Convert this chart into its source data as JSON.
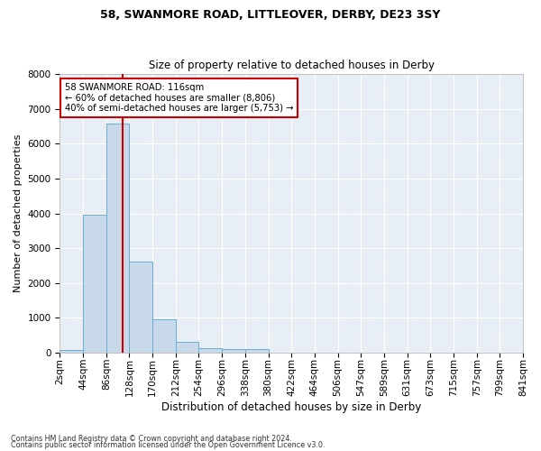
{
  "title1": "58, SWANMORE ROAD, LITTLEOVER, DERBY, DE23 3SY",
  "title2": "Size of property relative to detached houses in Derby",
  "xlabel": "Distribution of detached houses by size in Derby",
  "ylabel": "Number of detached properties",
  "bar_color": "#c8daea",
  "bar_edge_color": "#6aadd5",
  "background_color": "#e8eef5",
  "grid_color": "#ffffff",
  "bin_edges": [
    2,
    44,
    86,
    128,
    170,
    212,
    254,
    296,
    338,
    380,
    422,
    464,
    506,
    547,
    589,
    631,
    673,
    715,
    757,
    799,
    841
  ],
  "bin_labels": [
    "2sqm",
    "44sqm",
    "86sqm",
    "128sqm",
    "170sqm",
    "212sqm",
    "254sqm",
    "296sqm",
    "338sqm",
    "380sqm",
    "422sqm",
    "464sqm",
    "506sqm",
    "547sqm",
    "589sqm",
    "631sqm",
    "673sqm",
    "715sqm",
    "757sqm",
    "799sqm",
    "841sqm"
  ],
  "values": [
    75,
    3950,
    6580,
    2620,
    960,
    305,
    115,
    100,
    80,
    0,
    0,
    0,
    0,
    0,
    0,
    0,
    0,
    0,
    0,
    0
  ],
  "ylim": [
    0,
    8000
  ],
  "yticks": [
    0,
    1000,
    2000,
    3000,
    4000,
    5000,
    6000,
    7000,
    8000
  ],
  "property_label": "58 SWANMORE ROAD: 116sqm",
  "annotation_line1": "← 60% of detached houses are smaller (8,806)",
  "annotation_line2": "40% of semi-detached houses are larger (5,753) →",
  "vline_color": "#cc0000",
  "annotation_box_color": "#ffffff",
  "annotation_box_edge": "#cc0000",
  "footer1": "Contains HM Land Registry data © Crown copyright and database right 2024.",
  "footer2": "Contains public sector information licensed under the Open Government Licence v3.0."
}
